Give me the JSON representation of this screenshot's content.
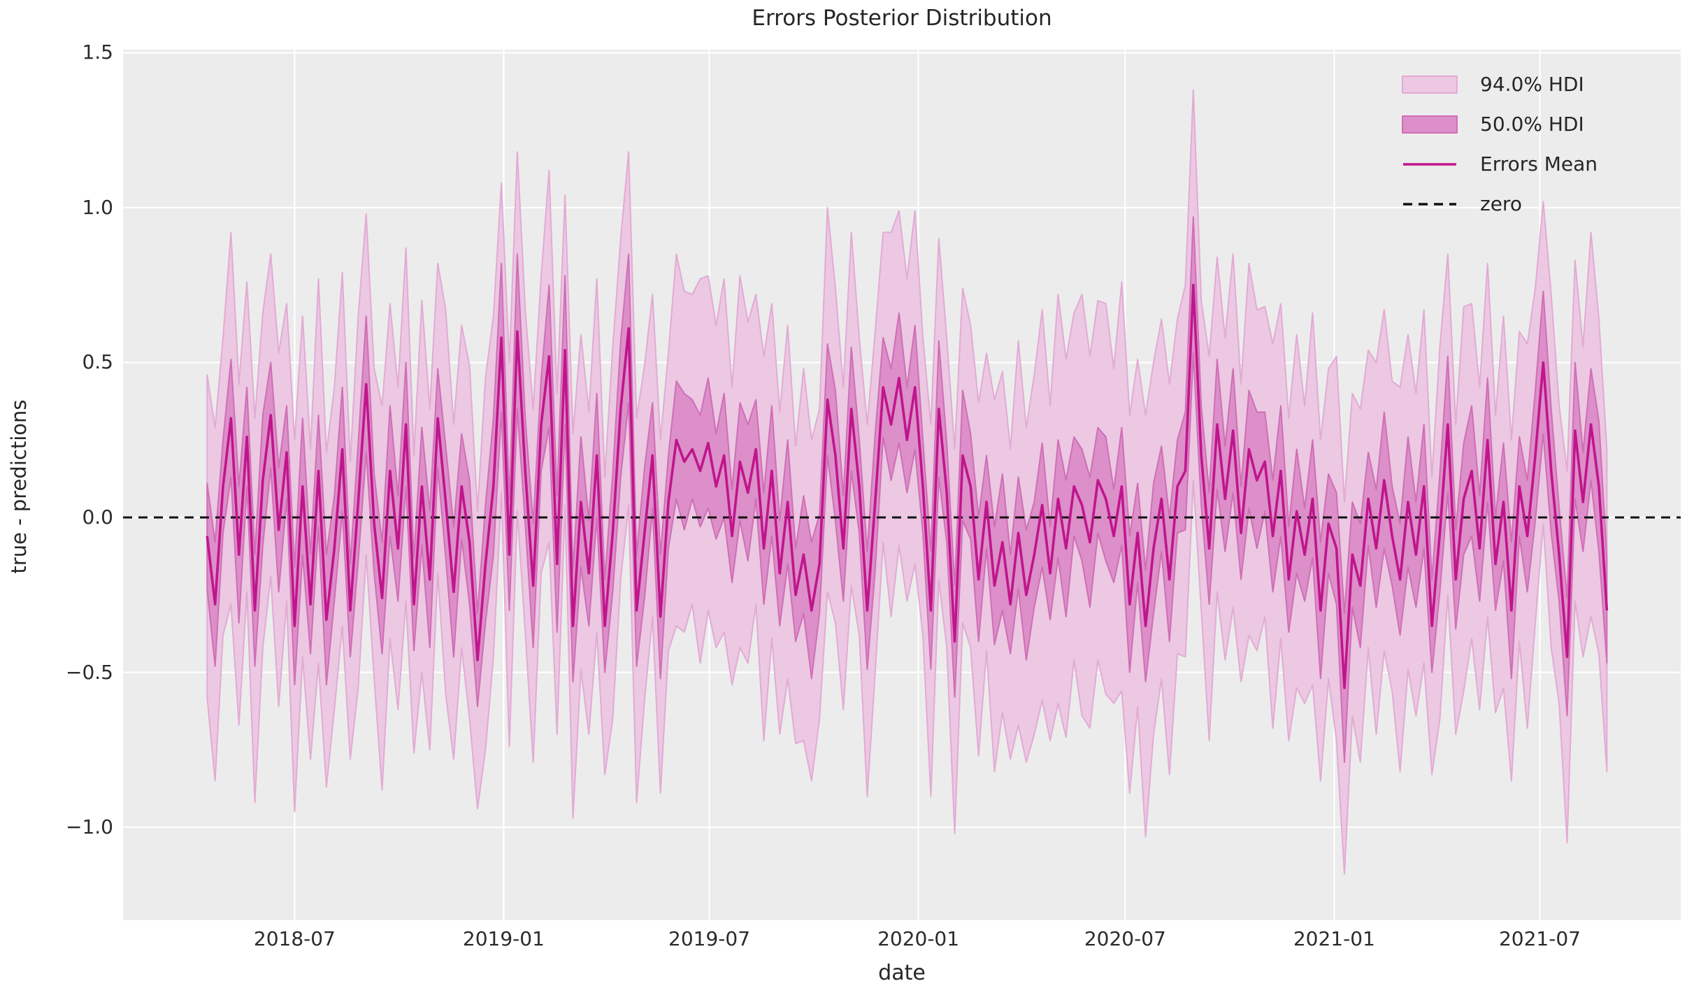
{
  "chart_data": {
    "type": "line",
    "title": "Errors Posterior Distribution",
    "xlabel": "date",
    "ylabel": "true - predictions",
    "grid": true,
    "legend_position": "upper right",
    "ylim": [
      -1.3,
      1.51
    ],
    "xlim": [
      "2018-01-31",
      "2021-11-02"
    ],
    "ytick_values": [
      1.5,
      1.0,
      0.5,
      0.0,
      -0.5,
      -1.0
    ],
    "ytick_labels": [
      "1.5",
      "1.0",
      "0.5",
      "0.0",
      "−0.5",
      "−1.0"
    ],
    "xtick_dates": [
      "2018-07-01",
      "2019-01-01",
      "2019-07-01",
      "2020-01-01",
      "2020-07-01",
      "2021-01-01",
      "2021-07-01"
    ],
    "xtick_labels": [
      "2018-07",
      "2019-01",
      "2019-07",
      "2020-01",
      "2020-07",
      "2021-01",
      "2021-07"
    ],
    "series": {
      "name": "Errors Mean",
      "start_date": "2018-04-15",
      "interval_days": 7,
      "mean": [
        -0.06,
        -0.28,
        0.1,
        0.32,
        -0.12,
        0.26,
        -0.3,
        0.12,
        0.33,
        -0.04,
        0.21,
        -0.35,
        0.1,
        -0.28,
        0.15,
        -0.33,
        -0.1,
        0.22,
        -0.3,
        0.05,
        0.43,
        -0.02,
        -0.26,
        0.15,
        -0.1,
        0.3,
        -0.28,
        0.1,
        -0.2,
        0.32,
        0.05,
        -0.24,
        0.1,
        -0.08,
        -0.46,
        -0.15,
        0.1,
        0.58,
        -0.12,
        0.6,
        0.15,
        -0.22,
        0.3,
        0.52,
        -0.15,
        0.54,
        -0.35,
        0.05,
        -0.18,
        0.2,
        -0.35,
        -0.05,
        0.35,
        0.61,
        -0.3,
        -0.05,
        0.2,
        -0.32,
        0.05,
        0.25,
        0.18,
        0.22,
        0.15,
        0.24,
        0.1,
        0.2,
        -0.06,
        0.18,
        0.08,
        0.22,
        -0.1,
        0.15,
        -0.18,
        0.05,
        -0.25,
        -0.12,
        -0.3,
        -0.15,
        0.38,
        0.2,
        -0.1,
        0.35,
        0.1,
        -0.3,
        0.05,
        0.42,
        0.3,
        0.45,
        0.25,
        0.42,
        0.1,
        -0.3,
        0.35,
        0.08,
        -0.4,
        0.2,
        0.1,
        -0.2,
        0.05,
        -0.22,
        -0.08,
        -0.28,
        -0.05,
        -0.25,
        -0.12,
        0.04,
        -0.18,
        0.06,
        -0.1,
        0.1,
        0.04,
        -0.08,
        0.12,
        0.06,
        -0.06,
        0.1,
        -0.28,
        -0.05,
        -0.35,
        -0.1,
        0.06,
        -0.2,
        0.1,
        0.15,
        0.75,
        0.2,
        -0.1,
        0.3,
        0.06,
        0.28,
        -0.05,
        0.22,
        0.12,
        0.18,
        -0.06,
        0.15,
        -0.2,
        0.02,
        -0.12,
        0.06,
        -0.3,
        -0.02,
        -0.1,
        -0.55,
        -0.12,
        -0.22,
        0.06,
        -0.1,
        0.12,
        -0.06,
        -0.2,
        0.05,
        -0.12,
        0.1,
        -0.35,
        -0.05,
        0.3,
        -0.2,
        0.06,
        0.15,
        -0.1,
        0.25,
        -0.15,
        0.05,
        -0.3,
        0.1,
        -0.06,
        0.2,
        0.5,
        0.15,
        -0.12,
        -0.45,
        0.28,
        0.05,
        0.3,
        0.1,
        -0.3
      ],
      "hdi50_halfwidth": [
        0.17,
        0.2,
        0.15,
        0.19,
        0.22,
        0.16,
        0.18,
        0.21,
        0.17,
        0.2,
        0.15,
        0.19,
        0.22,
        0.16,
        0.18,
        0.21,
        0.17,
        0.2,
        0.15,
        0.19,
        0.22,
        0.16,
        0.18,
        0.21,
        0.17,
        0.2,
        0.15,
        0.19,
        0.22,
        0.16,
        0.18,
        0.21,
        0.17,
        0.2,
        0.15,
        0.19,
        0.22,
        0.24,
        0.18,
        0.25,
        0.17,
        0.2,
        0.15,
        0.23,
        0.22,
        0.24,
        0.18,
        0.21,
        0.17,
        0.2,
        0.15,
        0.19,
        0.22,
        0.24,
        0.18,
        0.21,
        0.17,
        0.2,
        0.15,
        0.19,
        0.22,
        0.16,
        0.18,
        0.21,
        0.17,
        0.2,
        0.15,
        0.19,
        0.22,
        0.16,
        0.18,
        0.21,
        0.17,
        0.2,
        0.15,
        0.19,
        0.22,
        0.16,
        0.18,
        0.21,
        0.17,
        0.2,
        0.15,
        0.19,
        0.22,
        0.16,
        0.18,
        0.21,
        0.17,
        0.2,
        0.15,
        0.19,
        0.22,
        0.16,
        0.18,
        0.21,
        0.17,
        0.2,
        0.15,
        0.19,
        0.22,
        0.16,
        0.18,
        0.21,
        0.17,
        0.2,
        0.15,
        0.19,
        0.22,
        0.16,
        0.18,
        0.21,
        0.17,
        0.2,
        0.15,
        0.19,
        0.22,
        0.16,
        0.18,
        0.21,
        0.17,
        0.2,
        0.15,
        0.19,
        0.22,
        0.16,
        0.18,
        0.21,
        0.17,
        0.2,
        0.15,
        0.19,
        0.22,
        0.16,
        0.18,
        0.21,
        0.17,
        0.2,
        0.15,
        0.19,
        0.22,
        0.16,
        0.18,
        0.24,
        0.17,
        0.2,
        0.15,
        0.19,
        0.22,
        0.16,
        0.18,
        0.21,
        0.17,
        0.2,
        0.15,
        0.19,
        0.22,
        0.16,
        0.18,
        0.21,
        0.17,
        0.2,
        0.15,
        0.19,
        0.22,
        0.16,
        0.18,
        0.21,
        0.23,
        0.2,
        0.15,
        0.19,
        0.22,
        0.16,
        0.18,
        0.21,
        0.17
      ],
      "hdi94_halfwidth": [
        0.52,
        0.57,
        0.48,
        0.6,
        0.55,
        0.5,
        0.62,
        0.54,
        0.52,
        0.57,
        0.48,
        0.6,
        0.55,
        0.5,
        0.62,
        0.54,
        0.52,
        0.57,
        0.48,
        0.6,
        0.55,
        0.5,
        0.62,
        0.54,
        0.52,
        0.57,
        0.48,
        0.6,
        0.55,
        0.5,
        0.62,
        0.54,
        0.52,
        0.57,
        0.48,
        0.6,
        0.55,
        0.5,
        0.62,
        0.58,
        0.52,
        0.57,
        0.48,
        0.6,
        0.55,
        0.5,
        0.62,
        0.54,
        0.52,
        0.57,
        0.48,
        0.6,
        0.55,
        0.57,
        0.62,
        0.54,
        0.52,
        0.57,
        0.48,
        0.6,
        0.55,
        0.5,
        0.62,
        0.54,
        0.52,
        0.57,
        0.48,
        0.6,
        0.55,
        0.5,
        0.62,
        0.54,
        0.52,
        0.57,
        0.48,
        0.6,
        0.55,
        0.5,
        0.62,
        0.54,
        0.52,
        0.57,
        0.48,
        0.6,
        0.55,
        0.5,
        0.62,
        0.54,
        0.52,
        0.57,
        0.48,
        0.6,
        0.55,
        0.5,
        0.62,
        0.54,
        0.52,
        0.57,
        0.48,
        0.6,
        0.55,
        0.5,
        0.62,
        0.54,
        0.58,
        0.63,
        0.54,
        0.66,
        0.61,
        0.56,
        0.68,
        0.6,
        0.58,
        0.63,
        0.54,
        0.66,
        0.61,
        0.56,
        0.68,
        0.6,
        0.58,
        0.63,
        0.54,
        0.6,
        0.63,
        0.5,
        0.62,
        0.54,
        0.52,
        0.57,
        0.48,
        0.6,
        0.55,
        0.5,
        0.62,
        0.54,
        0.52,
        0.57,
        0.48,
        0.6,
        0.55,
        0.5,
        0.62,
        0.6,
        0.52,
        0.57,
        0.48,
        0.6,
        0.55,
        0.5,
        0.62,
        0.54,
        0.52,
        0.57,
        0.48,
        0.6,
        0.55,
        0.5,
        0.62,
        0.54,
        0.52,
        0.57,
        0.48,
        0.6,
        0.55,
        0.5,
        0.62,
        0.54,
        0.52,
        0.57,
        0.48,
        0.6,
        0.55,
        0.5,
        0.62,
        0.54,
        0.52
      ]
    },
    "bands": [
      {
        "name": "94.0% HDI",
        "fill": "#ecc8e3",
        "edge": "#e2abd4"
      },
      {
        "name": "50.0% HDI",
        "fill": "#dc8fc9",
        "edge": "#cf6fb5"
      }
    ],
    "mean_line_color": "#c0158c",
    "zero_line": {
      "value": 0,
      "color": "#111111"
    },
    "colors": {
      "figure_bg": "#ffffff",
      "plot_bg": "#ececec",
      "grid": "#ffffff",
      "text": "#2b2b2b"
    },
    "legend": [
      {
        "label": "94.0% HDI",
        "type": "patch"
      },
      {
        "label": "50.0% HDI",
        "type": "patch"
      },
      {
        "label": "Errors Mean",
        "type": "line"
      },
      {
        "label": "zero",
        "type": "dashed-line"
      }
    ]
  }
}
